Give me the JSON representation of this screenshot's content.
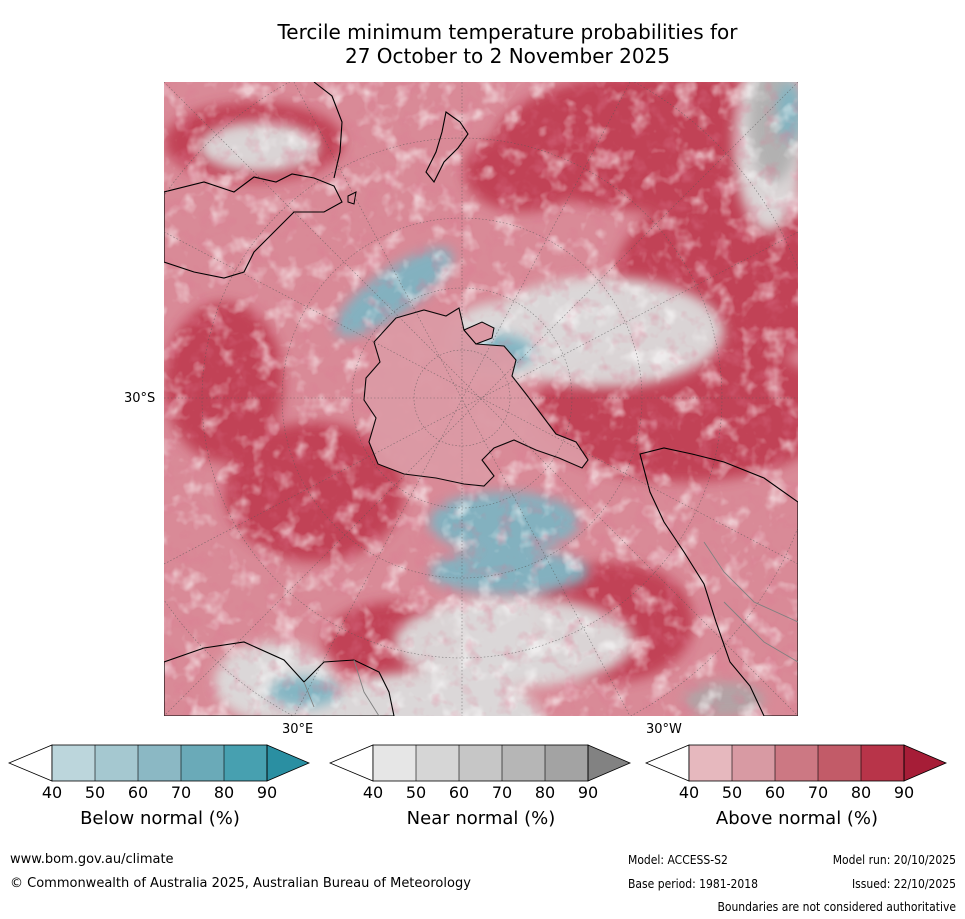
{
  "title_line1": "Tercile minimum temperature probabilities for",
  "title_line2": "27 October to 2 November 2025",
  "map": {
    "projection": "south-polar-stereographic",
    "lat_label": "30°S",
    "lon_label_east": "30°E",
    "lon_label_west": "30°W"
  },
  "colorbars": [
    {
      "label": "Below normal (%)",
      "ticks": [
        "40",
        "50",
        "60",
        "70",
        "80",
        "90"
      ],
      "colors": [
        "#bcd6dc",
        "#a5c8d0",
        "#8bb8c4",
        "#6aaab8",
        "#47a0b0",
        "#2a8fa2"
      ]
    },
    {
      "label": "Near normal (%)",
      "ticks": [
        "40",
        "50",
        "60",
        "70",
        "80",
        "90"
      ],
      "colors": [
        "#e6e6e6",
        "#d6d6d6",
        "#c6c6c6",
        "#b6b6b6",
        "#a3a3a3",
        "#828282"
      ]
    },
    {
      "label": "Above normal (%)",
      "ticks": [
        "40",
        "50",
        "60",
        "70",
        "80",
        "90"
      ],
      "colors": [
        "#e6b8be",
        "#d89aa3",
        "#cc7883",
        "#c25b68",
        "#b83449",
        "#a61d37"
      ]
    }
  ],
  "footer": {
    "website": "www.bom.gov.au/climate",
    "copyright": "© Commonwealth of Australia 2025, Australian Bureau of Meteorology",
    "model": "Model: ACCESS-S2",
    "base_period": "Base period: 1981-2018",
    "model_run": "Model run: 20/10/2025",
    "issued": "Issued: 22/10/2025",
    "disclaimer": "Boundaries are not considered authoritative"
  }
}
